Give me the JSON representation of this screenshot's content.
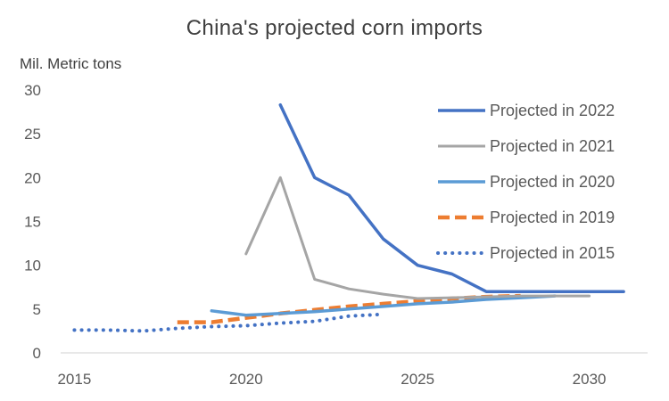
{
  "chart_data": {
    "type": "line",
    "title": "China's projected corn imports",
    "xlabel": "",
    "ylabel": "Mil. Metric tons",
    "xlim": [
      2014.6,
      2031.7
    ],
    "ylim": [
      0,
      30
    ],
    "x_ticks": [
      2015,
      2020,
      2025,
      2030
    ],
    "y_ticks": [
      0,
      5,
      10,
      15,
      20,
      25,
      30
    ],
    "grid": false,
    "legend_position": "right",
    "series": [
      {
        "name": "Projected in 2022",
        "color": "#4472C4",
        "style": "solid",
        "points": [
          [
            2021,
            28.3
          ],
          [
            2022,
            20
          ],
          [
            2023,
            18
          ],
          [
            2024,
            13
          ],
          [
            2025,
            10
          ],
          [
            2026,
            9
          ],
          [
            2027,
            7
          ],
          [
            2028,
            7
          ],
          [
            2029,
            7
          ],
          [
            2030,
            7
          ],
          [
            2031,
            7
          ]
        ]
      },
      {
        "name": "Projected in 2021",
        "color": "#A5A5A5",
        "style": "solid",
        "points": [
          [
            2020,
            11.3
          ],
          [
            2021,
            20
          ],
          [
            2022,
            8.4
          ],
          [
            2023,
            7.3
          ],
          [
            2024,
            6.7
          ],
          [
            2025,
            6.2
          ],
          [
            2026,
            6.3
          ],
          [
            2027,
            6.4
          ],
          [
            2028,
            6.5
          ],
          [
            2029,
            6.5
          ],
          [
            2030,
            6.5
          ]
        ]
      },
      {
        "name": "Projected in 2020",
        "color": "#5B9BD5",
        "style": "solid",
        "points": [
          [
            2019,
            4.8
          ],
          [
            2020,
            4.3
          ],
          [
            2021,
            4.5
          ],
          [
            2022,
            4.7
          ],
          [
            2023,
            5.0
          ],
          [
            2024,
            5.3
          ],
          [
            2025,
            5.6
          ],
          [
            2026,
            5.8
          ],
          [
            2027,
            6.1
          ],
          [
            2028,
            6.3
          ],
          [
            2029,
            6.5
          ]
        ]
      },
      {
        "name": "Projected in 2019",
        "color": "#ED7D31",
        "style": "dashed",
        "points": [
          [
            2018,
            3.5
          ],
          [
            2019,
            3.5
          ],
          [
            2020,
            4.0
          ],
          [
            2021,
            4.5
          ],
          [
            2022,
            4.9
          ],
          [
            2023,
            5.3
          ],
          [
            2024,
            5.6
          ],
          [
            2025,
            5.9
          ],
          [
            2026,
            6.2
          ],
          [
            2027,
            6.4
          ],
          [
            2028,
            6.5
          ]
        ]
      },
      {
        "name": "Projected in 2015",
        "color": "#4472C4",
        "style": "dotted",
        "points": [
          [
            2015,
            2.6
          ],
          [
            2016,
            2.6
          ],
          [
            2017,
            2.5
          ],
          [
            2018,
            2.8
          ],
          [
            2019,
            3.0
          ],
          [
            2020,
            3.1
          ],
          [
            2021,
            3.4
          ],
          [
            2022,
            3.6
          ],
          [
            2023,
            4.2
          ],
          [
            2024,
            4.4
          ]
        ]
      }
    ]
  }
}
